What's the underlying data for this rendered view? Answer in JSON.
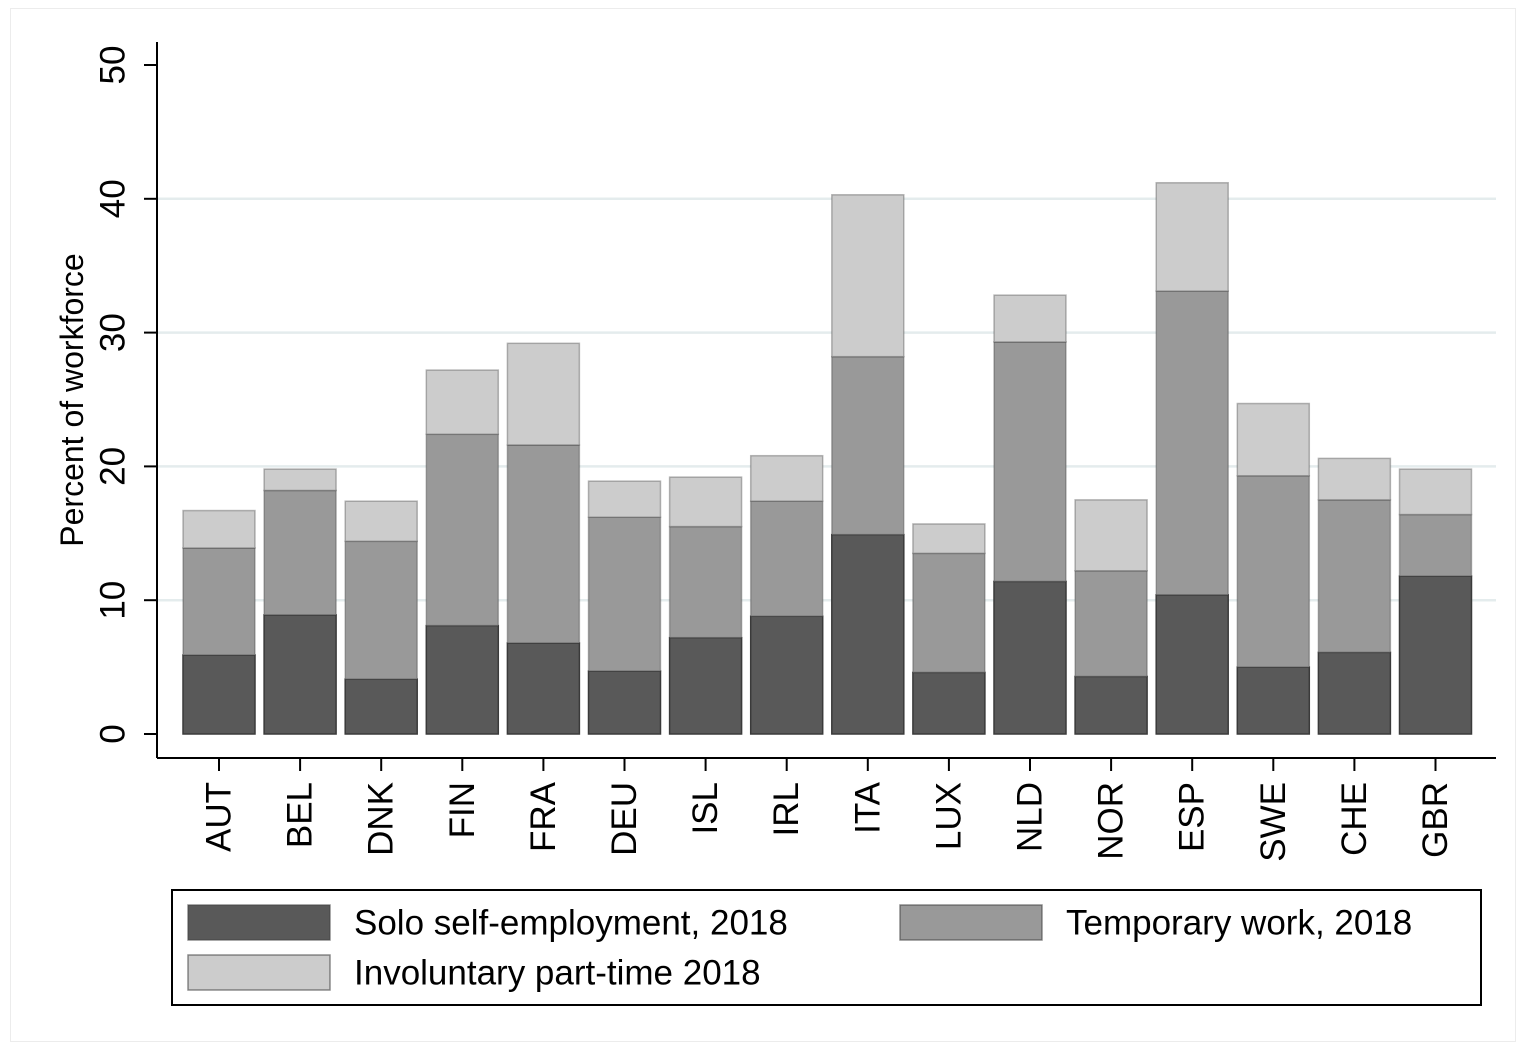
{
  "chart_data": {
    "type": "bar",
    "stacked": true,
    "title": "",
    "xlabel": "",
    "ylabel": "Percent of workforce",
    "ylim": [
      0,
      50
    ],
    "yticks": [
      0,
      10,
      20,
      30,
      40,
      50
    ],
    "grid": true,
    "legend_position": "bottom",
    "categories": [
      "AUT",
      "BEL",
      "DNK",
      "FIN",
      "FRA",
      "DEU",
      "ISL",
      "IRL",
      "ITA",
      "LUX",
      "NLD",
      "NOR",
      "ESP",
      "SWE",
      "CHE",
      "GBR"
    ],
    "series": [
      {
        "name": "Solo self-employment, 2018",
        "color": "#595959",
        "values": [
          5.9,
          8.9,
          4.1,
          8.1,
          6.8,
          4.7,
          7.2,
          8.8,
          14.9,
          4.6,
          11.4,
          4.3,
          10.4,
          5.0,
          6.1,
          11.8
        ]
      },
      {
        "name": "Temporary work, 2018",
        "color": "#999999",
        "values": [
          8.0,
          9.3,
          10.3,
          14.3,
          14.8,
          11.5,
          8.3,
          8.6,
          13.3,
          8.9,
          17.9,
          7.9,
          22.7,
          14.3,
          11.4,
          4.6
        ]
      },
      {
        "name": "Involuntary part-time 2018",
        "color": "#cccccc",
        "values": [
          2.8,
          1.6,
          3.0,
          4.8,
          7.6,
          2.7,
          3.7,
          3.4,
          12.1,
          2.2,
          3.5,
          5.3,
          8.1,
          5.4,
          3.1,
          3.4
        ]
      }
    ],
    "legend": {
      "rows": [
        [
          "Solo self-employment, 2018",
          "Temporary work, 2018"
        ],
        [
          "Involuntary part-time 2018"
        ]
      ]
    }
  }
}
